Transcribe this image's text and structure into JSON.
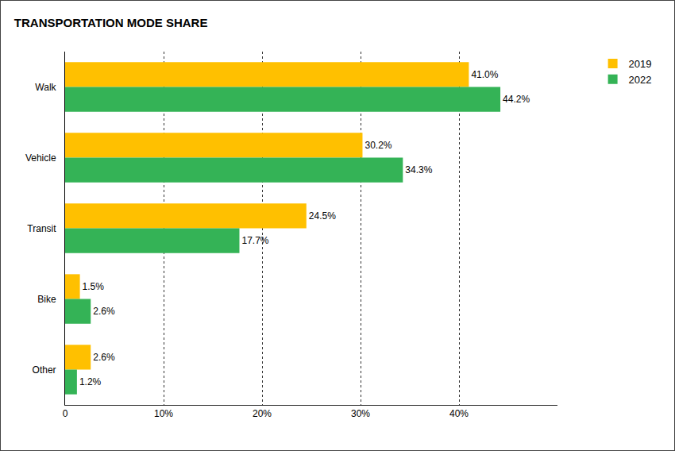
{
  "chart_data": {
    "type": "bar",
    "title": "TRANSPORTATION MODE SHARE",
    "orientation": "horizontal",
    "categories": [
      "Walk",
      "Vehicle",
      "Transit",
      "Bike",
      "Other"
    ],
    "series": [
      {
        "name": "2019",
        "color": "#FFC000",
        "values": [
          41.0,
          30.2,
          24.5,
          1.5,
          2.6
        ],
        "value_labels": [
          "41.0%",
          "30.2%",
          "24.5%",
          "1.5%",
          "2.6%"
        ]
      },
      {
        "name": "2022",
        "color": "#34B356",
        "values": [
          44.2,
          34.3,
          17.7,
          2.6,
          1.2
        ],
        "value_labels": [
          "44.2%",
          "34.3%",
          "17.7%",
          "2.6%",
          "1.2%"
        ]
      }
    ],
    "xlim": [
      0,
      50
    ],
    "xticks": [
      0,
      {
        "value": 10,
        "label": "10%"
      },
      {
        "value": 20,
        "label": "20%"
      },
      {
        "value": 30,
        "label": "30%"
      },
      {
        "value": 40,
        "label": "40%"
      }
    ],
    "grid": true,
    "legend": "top right",
    "data_labels": true
  }
}
